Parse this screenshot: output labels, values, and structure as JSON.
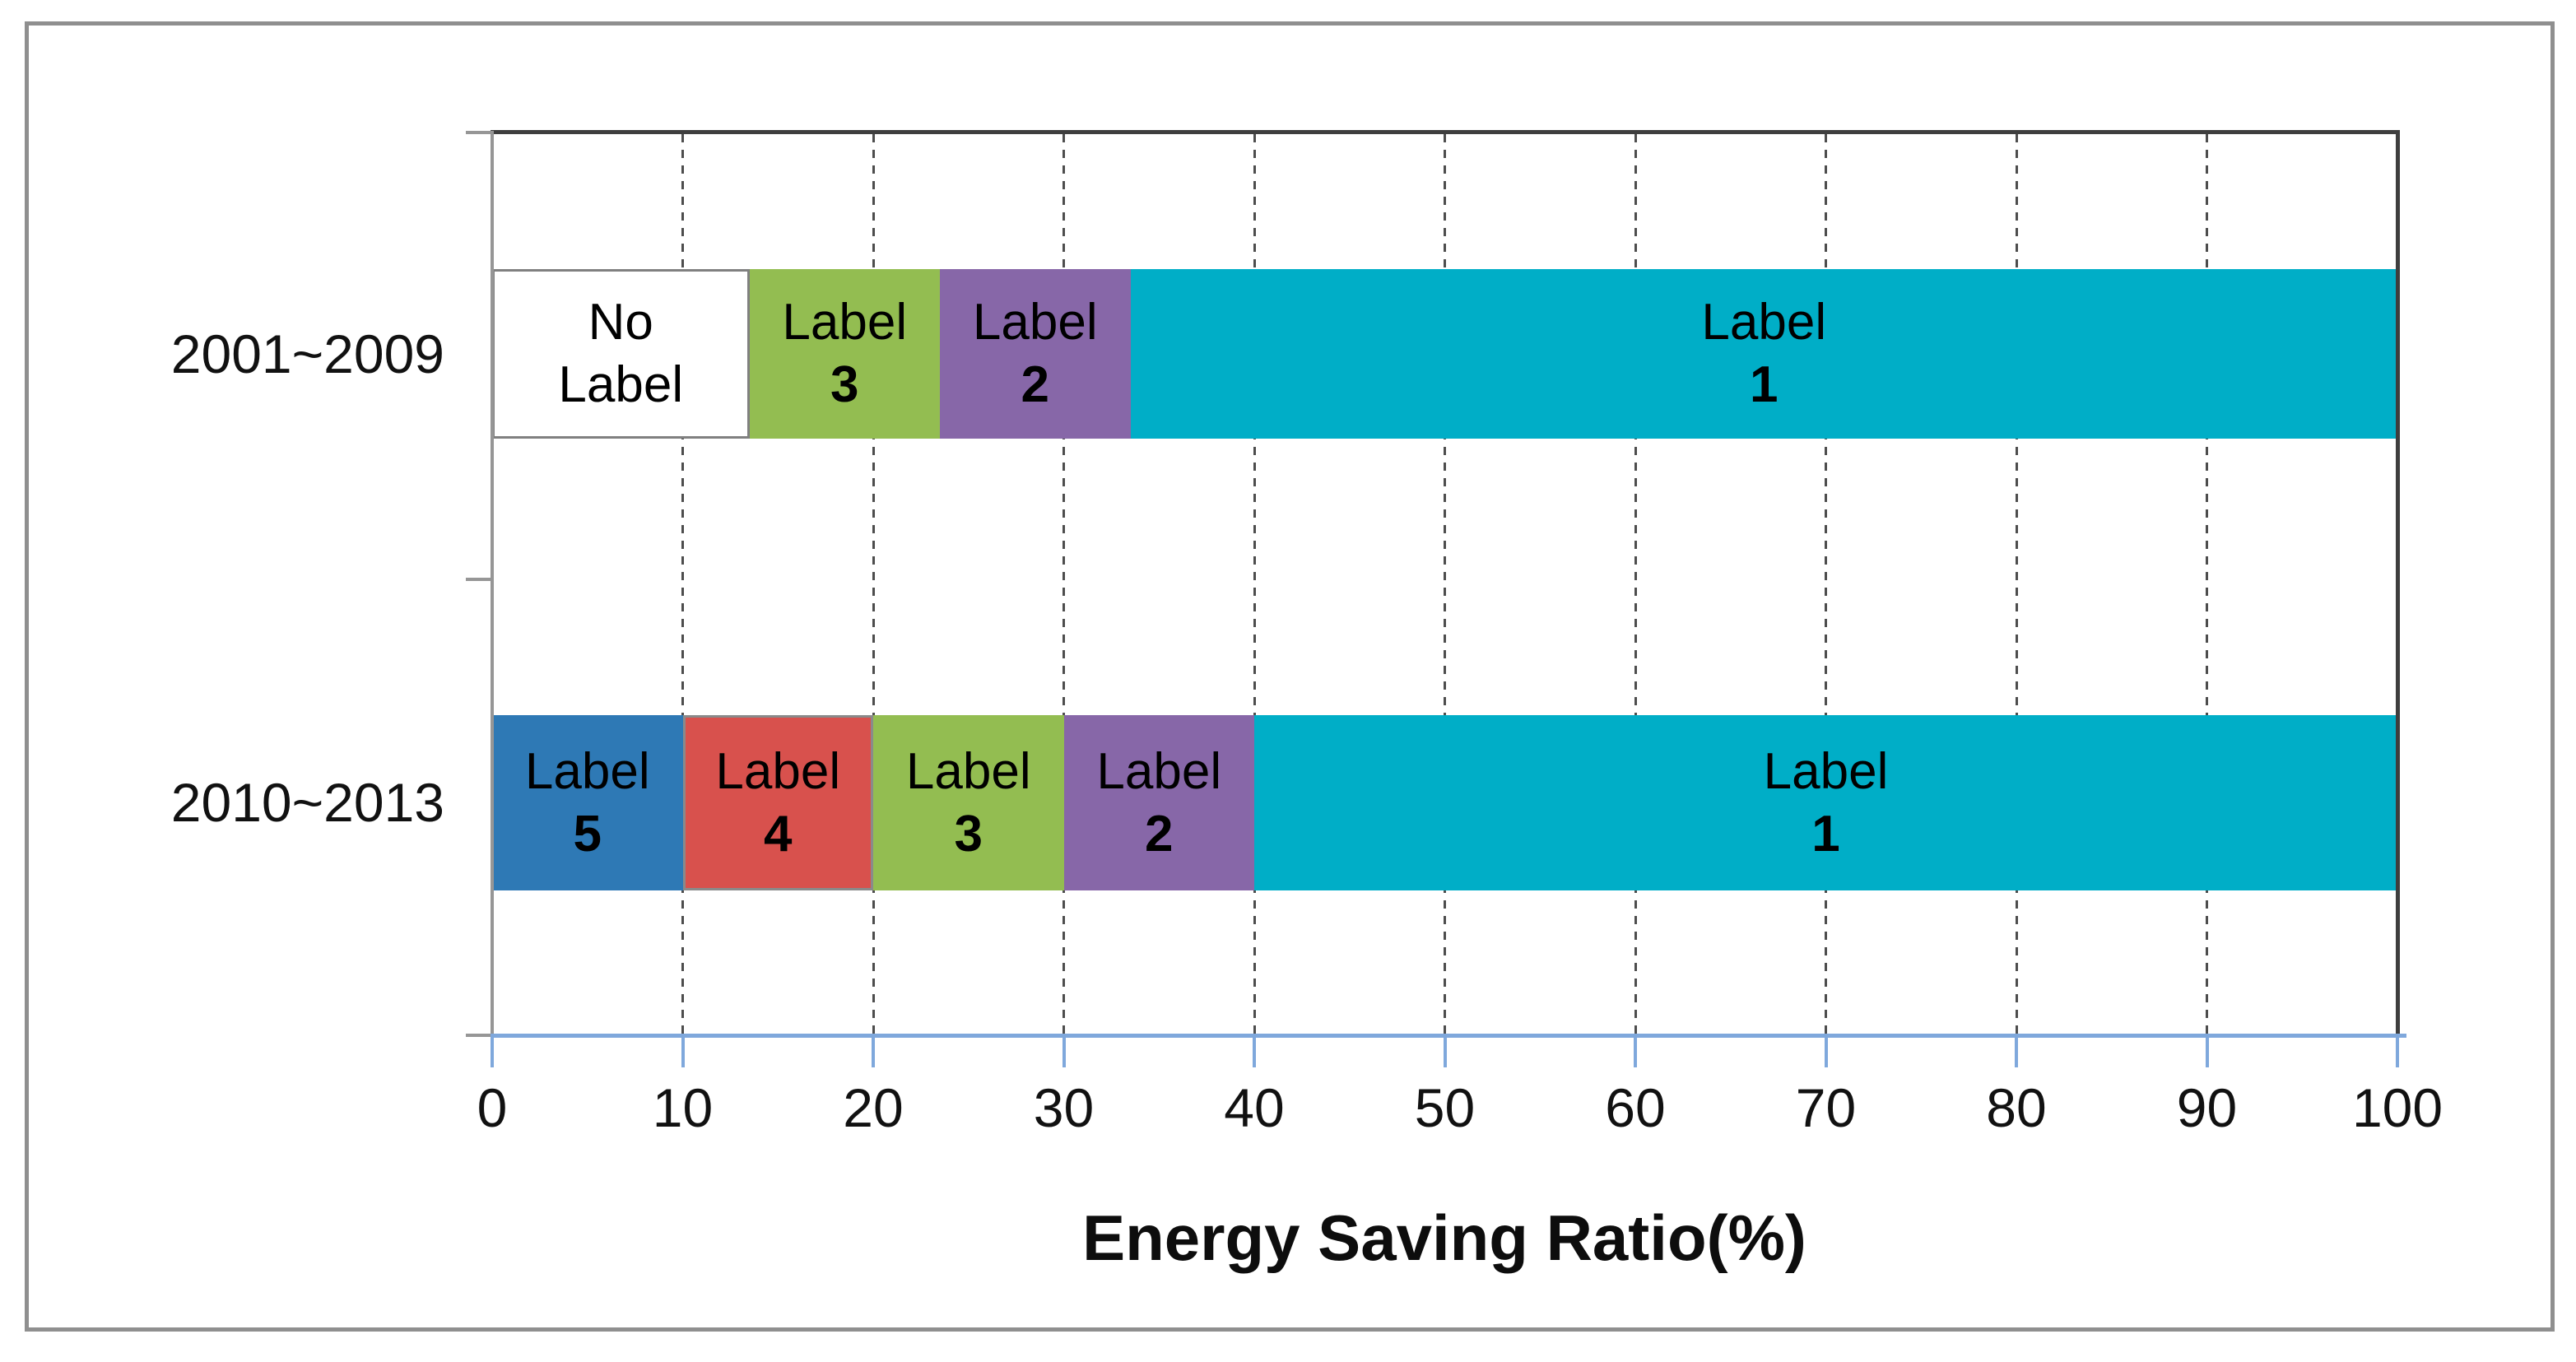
{
  "chart_data": {
    "type": "bar",
    "orientation": "horizontal",
    "stacked": true,
    "title": "",
    "xlabel": "Energy Saving Ratio(%)",
    "ylabel": "",
    "xlim": [
      0,
      100
    ],
    "x_ticks": [
      0,
      10,
      20,
      30,
      40,
      50,
      60,
      70,
      80,
      90,
      100
    ],
    "grid": "vertical-dashed",
    "legend_position": "none",
    "categories": [
      "2001~2009",
      "2010~2013"
    ],
    "series": [
      {
        "name": "No Label",
        "color": "#ffffff",
        "values": [
          13.5,
          0
        ]
      },
      {
        "name": "Label 5",
        "color": "#2e79b5",
        "values": [
          0,
          10
        ]
      },
      {
        "name": "Label 4",
        "color": "#d8514d",
        "values": [
          0,
          10
        ]
      },
      {
        "name": "Label 3",
        "color": "#93bd51",
        "values": [
          10,
          10
        ]
      },
      {
        "name": "Label 2",
        "color": "#8767a8",
        "values": [
          10,
          10
        ]
      },
      {
        "name": "Label 1",
        "color": "#00aec7",
        "values": [
          66.5,
          60
        ]
      }
    ]
  },
  "axis": {
    "x_title": "Energy Saving Ratio(%)",
    "x_tick_labels": [
      "0",
      "10",
      "20",
      "30",
      "40",
      "50",
      "60",
      "70",
      "80",
      "90",
      "100"
    ]
  },
  "bars": [
    {
      "category": "2001~2009",
      "segments": [
        {
          "line1": "No",
          "line2": "Label",
          "bold2": false,
          "value": 13.5,
          "color": "#ffffff",
          "border": "#808080"
        },
        {
          "line1": "Label",
          "line2": "3",
          "bold2": true,
          "value": 10,
          "color": "#93bd51",
          "border": ""
        },
        {
          "line1": "Label",
          "line2": "2",
          "bold2": true,
          "value": 10,
          "color": "#8767a8",
          "border": ""
        },
        {
          "line1": "Label",
          "line2": "1",
          "bold2": true,
          "value": 66.5,
          "color": "#00aec7",
          "border": ""
        }
      ]
    },
    {
      "category": "2010~2013",
      "segments": [
        {
          "line1": "Label",
          "line2": "5",
          "bold2": true,
          "value": 10,
          "color": "#2e79b5",
          "border": ""
        },
        {
          "line1": "Label",
          "line2": "4",
          "bold2": true,
          "value": 10,
          "color": "#d8514d",
          "border": "#8a8a8a"
        },
        {
          "line1": "Label",
          "line2": "3",
          "bold2": true,
          "value": 10,
          "color": "#93bd51",
          "border": ""
        },
        {
          "line1": "Label",
          "line2": "2",
          "bold2": true,
          "value": 10,
          "color": "#8767a8",
          "border": ""
        },
        {
          "line1": "Label",
          "line2": "1",
          "bold2": true,
          "value": 60,
          "color": "#00aec7",
          "border": ""
        }
      ]
    }
  ],
  "colors": {
    "axis_line_blue": "#7fa8dc",
    "plot_border_dark": "#3e3e3e",
    "y_axis_gray": "#969696",
    "gridline": "#4d4d4d",
    "outer_border": "#8f8f8f"
  }
}
